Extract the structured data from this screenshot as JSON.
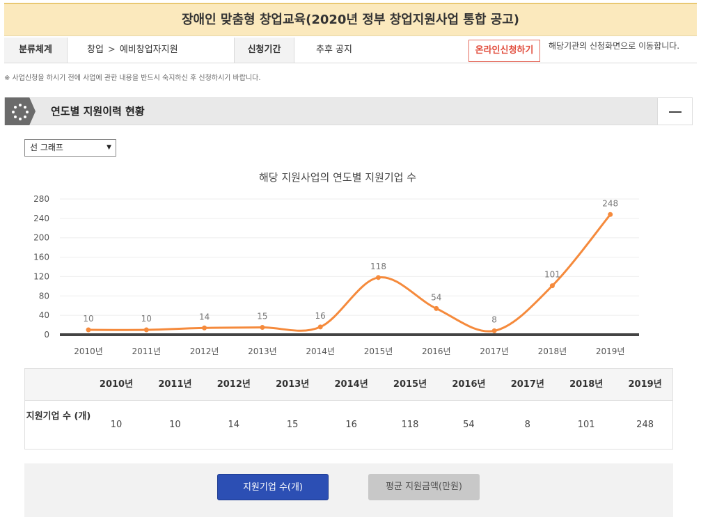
{
  "page_title": "장애인 맞춤형 창업교육(2020년 정부 창업지원사업 통합 공고)",
  "info": {
    "category_label": "분류체계",
    "category_path": [
      "창업",
      "예비창업자지원"
    ],
    "category_sep": ">",
    "period_label": "신청기간",
    "period_value": "추후 공지",
    "online_apply_label": "온라인신청하기",
    "online_apply_note": "해당기관의 신청화면으로 이동합니다."
  },
  "notice": "※ 사업신청을 하시기 전에 사업에 관한 내용을 반드시 숙지하신 후 신청하시기 바랍니다.",
  "section": {
    "title": "연도별 지원이력 현황"
  },
  "chart_select": {
    "selected": "선 그래프"
  },
  "chart_data": {
    "type": "line",
    "title": "해당 지원사업의 연도별 지원기업 수",
    "categories": [
      "2010년",
      "2011년",
      "2012년",
      "2013년",
      "2014년",
      "2015년",
      "2016년",
      "2017년",
      "2018년",
      "2019년"
    ],
    "series": [
      {
        "values": [
          10,
          10,
          14,
          15,
          16,
          118,
          54,
          8,
          101,
          248
        ]
      }
    ],
    "ylim": [
      0,
      280
    ],
    "yticks": [
      0,
      40,
      80,
      120,
      160,
      200,
      240,
      280
    ],
    "grid": true,
    "colors": {
      "line": "#f58a3c",
      "label": "#777777",
      "axis": "#555555",
      "grid": "#eeeeee"
    }
  },
  "table": {
    "row_label": "지원기업 수 (개)"
  },
  "tabs": {
    "active": "지원기업 수(개)",
    "inactive": "평균 지원금액(만원)"
  }
}
